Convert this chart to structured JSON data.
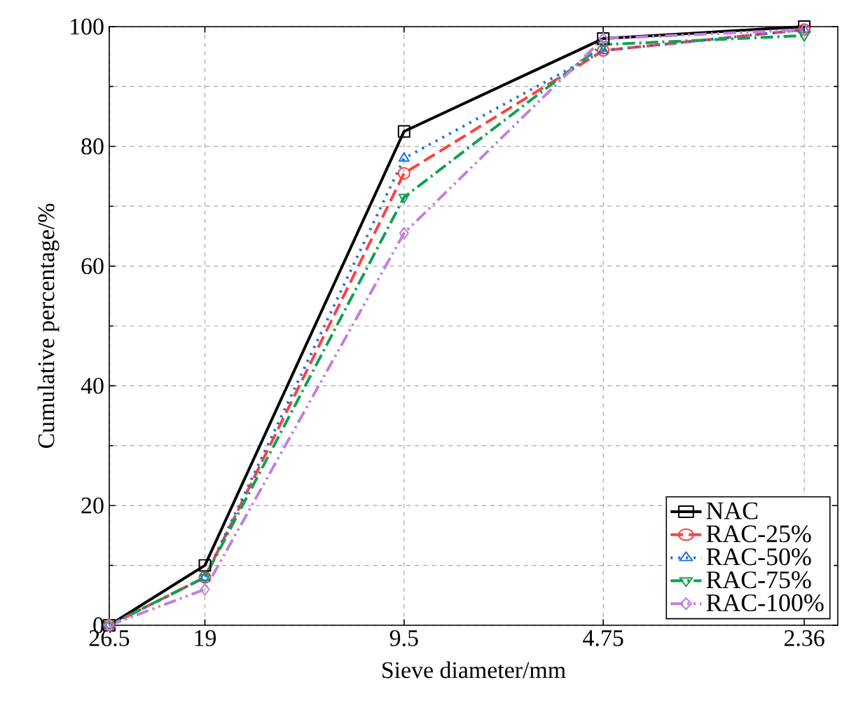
{
  "chart_data": {
    "type": "line",
    "xlabel": "Sieve diameter/mm",
    "ylabel": "Cumulative percentage/%",
    "log": "x",
    "x": [
      26.5,
      19,
      9.5,
      4.75,
      2.36
    ],
    "xlim": [
      26.5,
      2.1
    ],
    "xticks": [
      26.5,
      19,
      9.5,
      4.75,
      2.36
    ],
    "ylim": [
      0,
      100
    ],
    "yticks": [
      0,
      20,
      40,
      60,
      80,
      100
    ],
    "grid": true,
    "legend": "bottom right",
    "series": [
      {
        "name": "NAC",
        "color": "#000000",
        "marker": "square",
        "line_style": "solid",
        "values": [
          0,
          10,
          82.5,
          98,
          100
        ]
      },
      {
        "name": "RAC-25%",
        "color": "#ff4040",
        "marker": "circle",
        "line_style": "dashed",
        "values": [
          0,
          8,
          75.5,
          96,
          99.5
        ]
      },
      {
        "name": "RAC-50%",
        "color": "#1a6ee6",
        "marker": "triangle",
        "line_style": "dotted",
        "values": [
          0,
          8,
          78,
          96,
          99.5
        ]
      },
      {
        "name": "RAC-75%",
        "color": "#10a050",
        "marker": "triangle_down",
        "line_style": "dashdot",
        "values": [
          0,
          8,
          71.5,
          97,
          98.5
        ]
      },
      {
        "name": "RAC-100%",
        "color": "#c07ee0",
        "marker": "diamond",
        "line_style": "dashdotdot",
        "values": [
          0,
          6,
          65.5,
          98,
          99.5
        ]
      }
    ]
  }
}
